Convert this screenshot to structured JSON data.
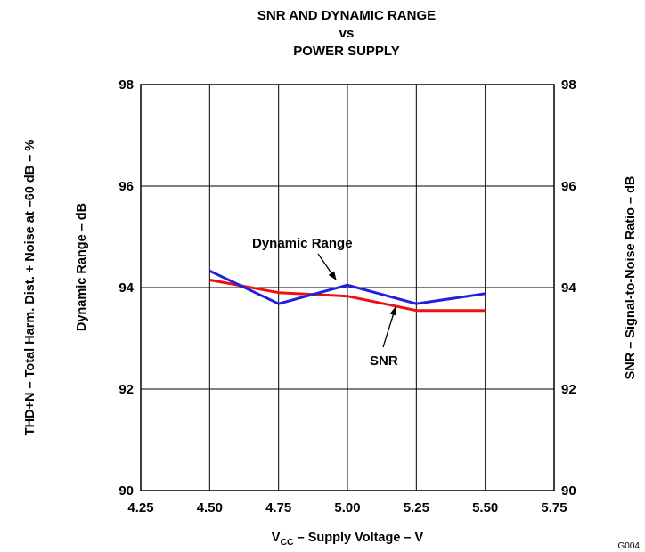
{
  "chart_data": {
    "type": "line",
    "title": [
      "SNR AND DYNAMIC RANGE",
      "vs",
      "POWER SUPPLY"
    ],
    "xlabel": {
      "main": "V",
      "sub": "CC",
      "rest": " – Supply Voltage – V"
    },
    "ylabel_left_outer": "THD+N – Total Harm. Dist. + Noise at –60 dB – %",
    "ylabel_left_inner": "Dynamic Range – dB",
    "ylabel_right": "SNR – Signal-to-Noise Ratio – dB",
    "figure_id": "G004",
    "x_ticks": [
      "4.25",
      "4.50",
      "4.75",
      "5.00",
      "5.25",
      "5.50",
      "5.75"
    ],
    "x_tick_values": [
      4.25,
      4.5,
      4.75,
      5.0,
      5.25,
      5.5,
      5.75
    ],
    "y_ticks": [
      "90",
      "92",
      "94",
      "96",
      "98"
    ],
    "y_tick_values": [
      90,
      92,
      94,
      96,
      98
    ],
    "xlim": [
      4.25,
      5.75
    ],
    "ylim": [
      90,
      98
    ],
    "grid": true,
    "series": [
      {
        "name": "Dynamic Range",
        "color": "#1f1fe0",
        "x": [
          4.5,
          4.75,
          5.0,
          5.25,
          5.5
        ],
        "y": [
          94.33,
          93.68,
          94.05,
          93.68,
          93.88
        ]
      },
      {
        "name": "SNR",
        "color": "#ee1111",
        "x": [
          4.5,
          4.75,
          5.0,
          5.25,
          5.5
        ],
        "y": [
          94.15,
          93.9,
          93.83,
          93.55,
          93.55
        ]
      }
    ],
    "annotations": [
      {
        "text": "Dynamic Range",
        "series": "Dynamic Range",
        "target_x": 4.95
      },
      {
        "text": "SNR",
        "series": "SNR",
        "target_x": 5.1
      }
    ]
  }
}
